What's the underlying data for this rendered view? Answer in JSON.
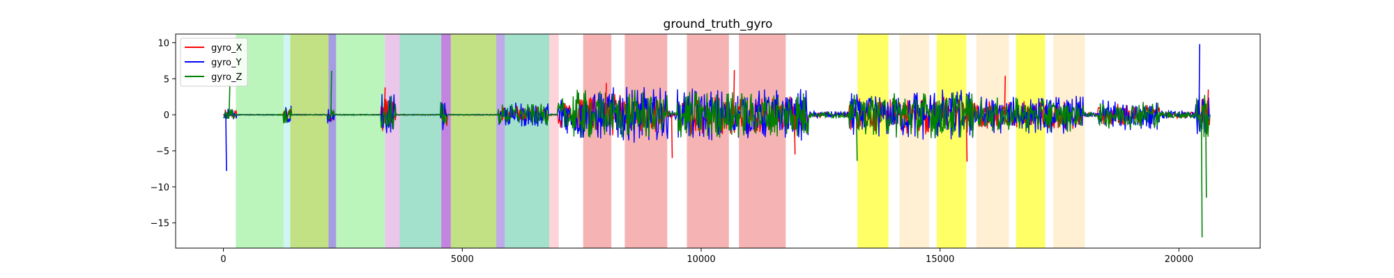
{
  "chart_data": {
    "type": "line",
    "title": "ground_truth_gyro",
    "xlabel": "",
    "ylabel": "",
    "xlim": [
      -1000,
      21700
    ],
    "ylim": [
      -18.5,
      11.2
    ],
    "xticks": [
      0,
      5000,
      10000,
      15000,
      20000
    ],
    "xtick_labels": [
      "0",
      "5000",
      "10000",
      "15000",
      "20000"
    ],
    "yticks": [
      10,
      5,
      0,
      -5,
      -10,
      -15
    ],
    "ytick_labels": [
      "10",
      "5",
      "0",
      "−5",
      "−10",
      "−15"
    ],
    "grid": false,
    "legend_position": "upper-left",
    "series": [
      {
        "name": "gyro_X",
        "color": "#ff0000"
      },
      {
        "name": "gyro_Y",
        "color": "#0000ff"
      },
      {
        "name": "gyro_Z",
        "color": "#008000"
      }
    ],
    "segments": [
      {
        "start": 0,
        "end": 280,
        "level": 0.8
      },
      {
        "start": 280,
        "end": 1250,
        "level": 0.06
      },
      {
        "start": 1250,
        "end": 1420,
        "level": 1.1
      },
      {
        "start": 1420,
        "end": 2180,
        "level": 0.06
      },
      {
        "start": 2180,
        "end": 2320,
        "level": 1.1
      },
      {
        "start": 2320,
        "end": 3300,
        "level": 0.06
      },
      {
        "start": 3300,
        "end": 3600,
        "level": 2.6
      },
      {
        "start": 3600,
        "end": 4550,
        "level": 0.06
      },
      {
        "start": 4550,
        "end": 4680,
        "level": 1.8
      },
      {
        "start": 4680,
        "end": 5750,
        "level": 0.06
      },
      {
        "start": 5750,
        "end": 6800,
        "level": 1.4
      },
      {
        "start": 6800,
        "end": 7000,
        "level": 0.1
      },
      {
        "start": 7000,
        "end": 7300,
        "level": 2.2
      },
      {
        "start": 7300,
        "end": 9300,
        "level": 3.2
      },
      {
        "start": 9300,
        "end": 9500,
        "level": 0.5
      },
      {
        "start": 9500,
        "end": 11900,
        "level": 3.0
      },
      {
        "start": 11900,
        "end": 12250,
        "level": 3.0
      },
      {
        "start": 12250,
        "end": 13100,
        "level": 0.4
      },
      {
        "start": 13100,
        "end": 14000,
        "level": 2.6
      },
      {
        "start": 14000,
        "end": 15700,
        "level": 3.0
      },
      {
        "start": 15700,
        "end": 18000,
        "level": 2.2
      },
      {
        "start": 18000,
        "end": 18300,
        "level": 0.3
      },
      {
        "start": 18300,
        "end": 19600,
        "level": 1.8
      },
      {
        "start": 19600,
        "end": 20350,
        "level": 0.5
      },
      {
        "start": 20350,
        "end": 20650,
        "level": 3.0
      }
    ],
    "spikes": [
      {
        "x": 50,
        "series": "gyro_Y",
        "value": -7.8
      },
      {
        "x": 120,
        "series": "gyro_Z",
        "value": 4.2
      },
      {
        "x": 2250,
        "series": "gyro_Z",
        "value": 6.1
      },
      {
        "x": 3370,
        "series": "gyro_X",
        "value": 3.8
      },
      {
        "x": 8000,
        "series": "gyro_X",
        "value": 4.4
      },
      {
        "x": 9380,
        "series": "gyro_X",
        "value": -6.0
      },
      {
        "x": 10680,
        "series": "gyro_X",
        "value": 6.2
      },
      {
        "x": 11950,
        "series": "gyro_X",
        "value": -5.5
      },
      {
        "x": 13250,
        "series": "gyro_Z",
        "value": -6.4
      },
      {
        "x": 15550,
        "series": "gyro_X",
        "value": -6.5
      },
      {
        "x": 16350,
        "series": "gyro_X",
        "value": 5.4
      },
      {
        "x": 20420,
        "series": "gyro_Y",
        "value": 9.8
      },
      {
        "x": 20470,
        "series": "gyro_Z",
        "value": -17.0
      },
      {
        "x": 20560,
        "series": "gyro_Z",
        "value": -11.5
      },
      {
        "x": 20600,
        "series": "gyro_X",
        "value": 3.5
      }
    ],
    "shaded_regions": [
      {
        "start": 260,
        "end": 1260,
        "color": "#90ee90",
        "alpha": 0.6
      },
      {
        "start": 1260,
        "end": 1400,
        "color": "#afeeee",
        "alpha": 0.6
      },
      {
        "start": 1400,
        "end": 2200,
        "color": "#9acd32",
        "alpha": 0.6
      },
      {
        "start": 2200,
        "end": 2360,
        "color": "#6a5acd",
        "alpha": 0.6
      },
      {
        "start": 2360,
        "end": 3380,
        "color": "#90ee90",
        "alpha": 0.6
      },
      {
        "start": 3380,
        "end": 3690,
        "color": "#dda0dd",
        "alpha": 0.6
      },
      {
        "start": 3690,
        "end": 4560,
        "color": "#66cdaa",
        "alpha": 0.6
      },
      {
        "start": 4560,
        "end": 4760,
        "color": "#9932cc",
        "alpha": 0.6
      },
      {
        "start": 4760,
        "end": 5710,
        "color": "#9acd32",
        "alpha": 0.6
      },
      {
        "start": 5710,
        "end": 5890,
        "color": "#9370db",
        "alpha": 0.6
      },
      {
        "start": 5890,
        "end": 6820,
        "color": "#66cdaa",
        "alpha": 0.6
      },
      {
        "start": 6820,
        "end": 7020,
        "color": "#ffb6c1",
        "alpha": 0.6
      },
      {
        "start": 7530,
        "end": 8120,
        "color": "#f08080",
        "alpha": 0.6
      },
      {
        "start": 8400,
        "end": 9290,
        "color": "#f08080",
        "alpha": 0.6
      },
      {
        "start": 9700,
        "end": 10580,
        "color": "#f08080",
        "alpha": 0.6
      },
      {
        "start": 10790,
        "end": 11770,
        "color": "#f08080",
        "alpha": 0.6
      },
      {
        "start": 13270,
        "end": 13920,
        "color": "#ffff00",
        "alpha": 0.6
      },
      {
        "start": 14150,
        "end": 14770,
        "color": "#ffe4b5",
        "alpha": 0.6
      },
      {
        "start": 14930,
        "end": 15550,
        "color": "#ffff00",
        "alpha": 0.6
      },
      {
        "start": 15760,
        "end": 16440,
        "color": "#ffe4b5",
        "alpha": 0.6
      },
      {
        "start": 16590,
        "end": 17200,
        "color": "#ffff00",
        "alpha": 0.6
      },
      {
        "start": 17370,
        "end": 18030,
        "color": "#ffe4b5",
        "alpha": 0.6
      }
    ]
  }
}
